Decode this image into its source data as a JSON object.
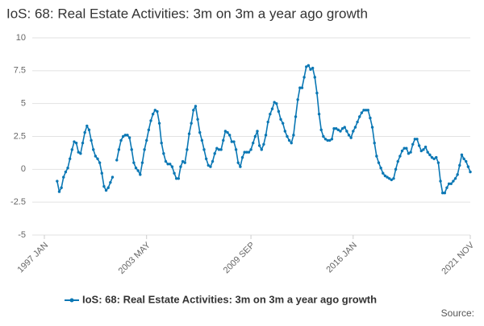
{
  "chart_data": {
    "type": "line",
    "title": "IoS: 68: Real Estate Activities: 3m on 3m a year ago growth",
    "source": "Source:",
    "categories": [
      "1997 JAN",
      null,
      null,
      null,
      null,
      null,
      null,
      null,
      null,
      null,
      null,
      null,
      null,
      null,
      null,
      null,
      null,
      null,
      null,
      null,
      null,
      null,
      null,
      null,
      null,
      null,
      null,
      null,
      null,
      null,
      null,
      null,
      null,
      null,
      null,
      null,
      null,
      null,
      null,
      null,
      null,
      null,
      null,
      null,
      null,
      null,
      null,
      null,
      "2003 MAY",
      null,
      null,
      null,
      null,
      null,
      null,
      null,
      null,
      null,
      null,
      null,
      null,
      null,
      null,
      null,
      null,
      null,
      null,
      null,
      null,
      null,
      null,
      null,
      null,
      null,
      null,
      null,
      null,
      null,
      null,
      null,
      null,
      null,
      null,
      null,
      null,
      null,
      null,
      null,
      null,
      null,
      null,
      null,
      null,
      null,
      null,
      null,
      null,
      "2009 SEP",
      null,
      null,
      null,
      null,
      null,
      null,
      null,
      null,
      null,
      null,
      null,
      null,
      null,
      null,
      null,
      null,
      null,
      null,
      null,
      null,
      null,
      null,
      null,
      null,
      null,
      null,
      null,
      null,
      null,
      null,
      null,
      null,
      null,
      null,
      null,
      null,
      null,
      null,
      null,
      null,
      null,
      null,
      null,
      null,
      null,
      null,
      null,
      "2016 JAN",
      null,
      null,
      null,
      null,
      null,
      null,
      null,
      null,
      null,
      null,
      null,
      null,
      null,
      null,
      null,
      null,
      null,
      null,
      null,
      null,
      null,
      null,
      null,
      null,
      null,
      null,
      null,
      null,
      null,
      null,
      null,
      null,
      null,
      null,
      null,
      null,
      null,
      null,
      null,
      null,
      null,
      null,
      null,
      null,
      null,
      null,
      null,
      null,
      null,
      null,
      null,
      null,
      null,
      null,
      "2021 NOV"
    ],
    "series": [
      {
        "name": "IoS: 68: Real Estate Activities: 3m on 3m a year ago growth",
        "color": "#0a77b4",
        "values": [
          null,
          null,
          null,
          null,
          null,
          null,
          -0.9,
          -1.7,
          -1.4,
          -0.6,
          -0.2,
          0.1,
          0.8,
          1.5,
          2.1,
          2.0,
          1.3,
          1.2,
          2.0,
          2.8,
          3.3,
          3.0,
          2.2,
          1.5,
          1.0,
          0.8,
          0.5,
          -0.3,
          -1.3,
          -1.6,
          -1.4,
          -1.0,
          -0.6,
          null,
          0.7,
          1.5,
          2.2,
          2.5,
          2.6,
          2.6,
          2.4,
          1.5,
          0.5,
          0.1,
          -0.1,
          -0.4,
          0.5,
          1.5,
          2.2,
          3.0,
          3.7,
          4.2,
          4.5,
          4.4,
          3.5,
          2.0,
          1.2,
          0.6,
          0.4,
          0.4,
          0.2,
          -0.3,
          -0.7,
          -0.7,
          0.2,
          0.6,
          0.5,
          1.5,
          2.7,
          3.5,
          4.5,
          4.8,
          3.8,
          2.8,
          2.2,
          1.5,
          0.8,
          0.3,
          0.2,
          0.6,
          1.2,
          1.6,
          1.5,
          1.5,
          2.2,
          2.9,
          2.8,
          2.6,
          2.1,
          2.1,
          1.5,
          0.5,
          0.2,
          0.9,
          1.3,
          1.3,
          1.3,
          1.5,
          2.0,
          2.5,
          2.9,
          1.8,
          1.5,
          1.9,
          2.6,
          3.6,
          4.2,
          4.6,
          5.1,
          5.0,
          4.4,
          3.8,
          3.5,
          2.9,
          2.5,
          2.2,
          2.0,
          2.6,
          4.0,
          5.3,
          6.2,
          6.2,
          7.0,
          7.8,
          7.9,
          7.6,
          7.7,
          7.0,
          5.8,
          4.2,
          3.0,
          2.5,
          2.3,
          2.2,
          2.2,
          2.3,
          3.1,
          3.1,
          3.0,
          2.9,
          3.1,
          3.2,
          2.9,
          2.6,
          2.4,
          2.9,
          3.2,
          3.6,
          4.0,
          4.3,
          4.5,
          4.5,
          4.5,
          3.9,
          3.2,
          2.0,
          1.0,
          0.5,
          0.1,
          -0.3,
          -0.5,
          -0.6,
          -0.7,
          -0.8,
          -0.7,
          0.0,
          0.6,
          1.0,
          1.4,
          1.6,
          1.6,
          1.2,
          1.3,
          1.9,
          2.3,
          2.3,
          1.8,
          1.4,
          1.5,
          1.7,
          1.3,
          1.1,
          0.9,
          0.8,
          0.9,
          0.5,
          -0.9,
          -1.8,
          -1.8,
          -1.4,
          -1.1,
          -1.1,
          -0.9,
          -0.7,
          -0.4,
          0.3,
          1.1,
          0.8,
          0.6,
          0.2,
          -0.2
        ]
      }
    ],
    "ylim": [
      -5,
      10
    ],
    "yticks": [
      10,
      7.5,
      5,
      2.5,
      0,
      -2.5,
      -5
    ],
    "grid": true
  }
}
